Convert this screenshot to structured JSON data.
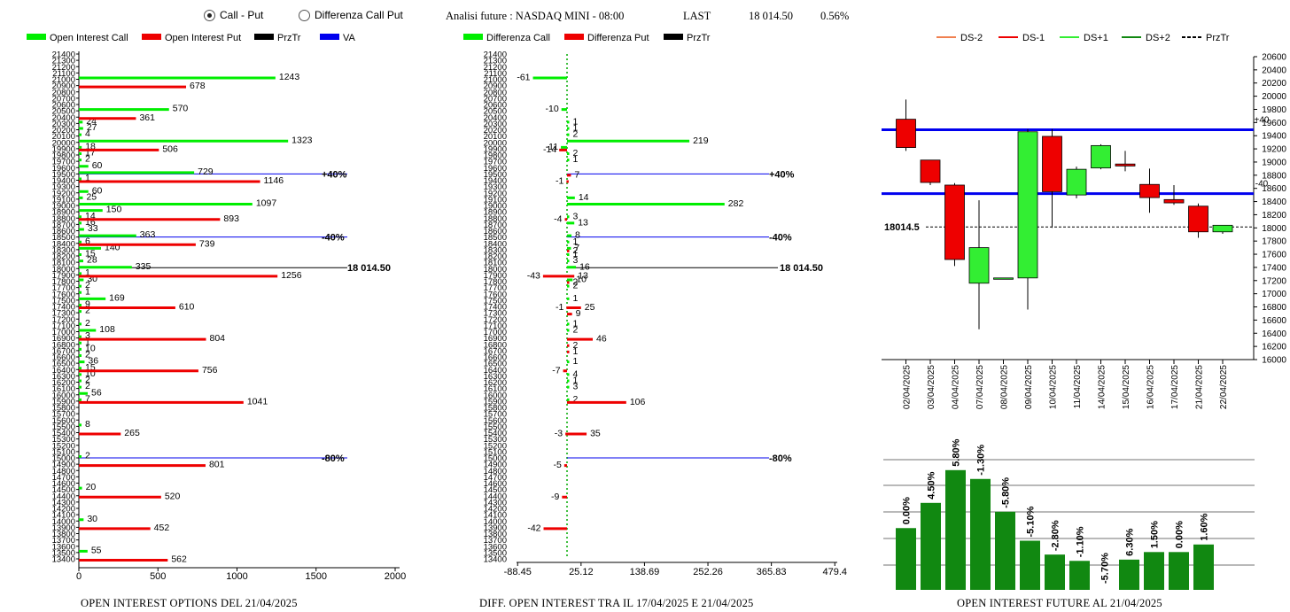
{
  "header": {
    "radio_call_put": "Call - Put",
    "radio_diff": "Differenza Call Put",
    "analysis_label": "Analisi future : NASDAQ MINI - 08:00",
    "last_label": "LAST",
    "last_value": "18 014.50",
    "last_pct": "0.56%"
  },
  "footers": {
    "left": "OPEN INTEREST OPTIONS DEL 21/04/2025",
    "middle": "DIFF. OPEN INTEREST TRA IL 17/04/2025 E 21/04/2025",
    "right": "OPEN INTEREST FUTURE AL 21/04/2025"
  },
  "colors": {
    "call": "#00ee00",
    "put": "#ee0000",
    "prztr": "#000000",
    "va": "#0000ee",
    "bull": "#33ee33",
    "bear": "#ee0000",
    "oi_bar": "#118811"
  },
  "chart_data": [
    {
      "type": "bar",
      "orientation": "horizontal",
      "legend": [
        "Open Interest Call",
        "Open Interest Put",
        "PrzTr",
        "VA"
      ],
      "ylim": [
        13400,
        21400
      ],
      "y_tick_step": 100,
      "xlim": [
        0,
        2000
      ],
      "x_ticks": [
        "0",
        "500",
        "1000",
        "1500",
        "2000"
      ],
      "series": [
        {
          "name": "Open Interest Call",
          "points": [
            [
              21000,
              1243
            ],
            [
              20500,
              570
            ],
            [
              20300,
              24
            ],
            [
              20200,
              27
            ],
            [
              20100,
              4
            ],
            [
              20000,
              1323
            ],
            [
              19900,
              18
            ],
            [
              19800,
              17
            ],
            [
              19700,
              2
            ],
            [
              19600,
              60
            ],
            [
              19500,
              729
            ],
            [
              19400,
              1
            ],
            [
              19200,
              60
            ],
            [
              19100,
              25
            ],
            [
              19000,
              1097
            ],
            [
              18900,
              150
            ],
            [
              18800,
              14
            ],
            [
              18700,
              16
            ],
            [
              18600,
              33
            ],
            [
              18500,
              363
            ],
            [
              18400,
              6
            ],
            [
              18300,
              140
            ],
            [
              18200,
              15
            ],
            [
              18100,
              28
            ],
            [
              18000,
              335
            ],
            [
              17900,
              1
            ],
            [
              17800,
              30
            ],
            [
              17700,
              2
            ],
            [
              17600,
              1
            ],
            [
              17500,
              169
            ],
            [
              17400,
              9
            ],
            [
              17300,
              2
            ],
            [
              17100,
              2
            ],
            [
              17000,
              108
            ],
            [
              16900,
              3
            ],
            [
              16800,
              1
            ],
            [
              16700,
              10
            ],
            [
              16600,
              2
            ],
            [
              16500,
              36
            ],
            [
              16400,
              15
            ],
            [
              16300,
              10
            ],
            [
              16200,
              2
            ],
            [
              16100,
              2
            ],
            [
              16000,
              56
            ],
            [
              15900,
              7
            ],
            [
              15500,
              8
            ],
            [
              15000,
              2
            ],
            [
              14500,
              20
            ],
            [
              14000,
              30
            ],
            [
              13500,
              55
            ]
          ]
        },
        {
          "name": "Open Interest Put",
          "points": [
            [
              20900,
              678
            ],
            [
              20400,
              361
            ],
            [
              19900,
              506
            ],
            [
              19400,
              1146
            ],
            [
              18800,
              893
            ],
            [
              18400,
              739
            ],
            [
              17900,
              1256
            ],
            [
              17400,
              610
            ],
            [
              16900,
              804
            ],
            [
              16400,
              756
            ],
            [
              15900,
              1041
            ],
            [
              15400,
              265
            ],
            [
              14900,
              801
            ],
            [
              14400,
              520
            ],
            [
              13900,
              452
            ],
            [
              13400,
              562
            ]
          ]
        }
      ],
      "levels": [
        {
          "name": "+40%",
          "value": 19500,
          "color": "va"
        },
        {
          "name": "-40%",
          "value": 18500,
          "color": "va"
        },
        {
          "name": "18 014.50",
          "value": 18014.5,
          "color": "prztr"
        },
        {
          "name": "-80%",
          "value": 15000,
          "color": "va"
        }
      ]
    },
    {
      "type": "bar",
      "orientation": "horizontal",
      "legend": [
        "Differenza Call",
        "Differenza Put",
        "PrzTr"
      ],
      "ylim": [
        13400,
        21400
      ],
      "xlim": [
        -88.45,
        479.4
      ],
      "x_ticks": [
        "-88.45",
        "25.12",
        "138.69",
        "252.26",
        "365.83",
        "479.4"
      ],
      "series": [
        {
          "name": "Differenza Call",
          "points": [
            [
              21000,
              -61
            ],
            [
              20500,
              -10
            ],
            [
              20300,
              1
            ],
            [
              20200,
              1
            ],
            [
              20100,
              2
            ],
            [
              20000,
              219
            ],
            [
              19900,
              -11
            ],
            [
              19800,
              2
            ],
            [
              19700,
              1
            ],
            [
              19100,
              14
            ],
            [
              19000,
              282
            ],
            [
              18800,
              3
            ],
            [
              18700,
              13
            ],
            [
              18500,
              8
            ],
            [
              18400,
              1
            ],
            [
              18300,
              7
            ],
            [
              18200,
              1
            ],
            [
              18100,
              3
            ],
            [
              18000,
              16
            ],
            [
              17800,
              10
            ],
            [
              17700,
              2
            ],
            [
              17500,
              1
            ],
            [
              17100,
              1
            ],
            [
              17000,
              2
            ],
            [
              16500,
              1
            ],
            [
              16300,
              4
            ],
            [
              16200,
              1
            ],
            [
              16100,
              3
            ],
            [
              15900,
              2
            ]
          ]
        },
        {
          "name": "Differenza Put",
          "points": [
            [
              19900,
              -14
            ],
            [
              19500,
              7
            ],
            [
              19400,
              -1
            ],
            [
              18800,
              -4
            ],
            [
              18300,
              2
            ],
            [
              17900,
              -43
            ],
            [
              17900,
              13
            ],
            [
              17800,
              2
            ],
            [
              17400,
              25
            ],
            [
              17400,
              -1
            ],
            [
              17300,
              9
            ],
            [
              16900,
              46
            ],
            [
              16800,
              2
            ],
            [
              16700,
              1
            ],
            [
              16400,
              -7
            ],
            [
              15900,
              106
            ],
            [
              15400,
              35
            ],
            [
              15400,
              -3
            ],
            [
              14900,
              -5
            ],
            [
              14400,
              -9
            ],
            [
              13900,
              -42
            ]
          ]
        }
      ],
      "levels": [
        {
          "name": "+40%",
          "value": 19500
        },
        {
          "name": "-40%",
          "value": 18500
        },
        {
          "name": "18 014.50",
          "value": 18014.5
        },
        {
          "name": "-80%",
          "value": 15000
        }
      ]
    },
    {
      "type": "candlestick",
      "legend": [
        "DS-2",
        "DS-1",
        "DS+1",
        "DS+2",
        "PrzTr"
      ],
      "ylim": [
        16000,
        20600
      ],
      "y_tick_step": 200,
      "categories": [
        "02/04/2025",
        "03/04/2025",
        "04/04/2025",
        "07/04/2025",
        "08/04/2025",
        "09/04/2025",
        "10/04/2025",
        "11/04/2025",
        "14/04/2025",
        "15/04/2025",
        "16/04/2025",
        "17/04/2025",
        "21/04/2025",
        "22/04/2025"
      ],
      "ohlc": [
        [
          19650,
          19950,
          19170,
          19220
        ],
        [
          19030,
          19030,
          18650,
          18690
        ],
        [
          18650,
          18680,
          17420,
          17520
        ],
        [
          17160,
          18420,
          16460,
          17700
        ],
        [
          17240,
          17240,
          17240,
          17240
        ],
        [
          17240,
          19500,
          16760,
          19460
        ],
        [
          19390,
          19500,
          18000,
          18550
        ],
        [
          18500,
          18930,
          18450,
          18890
        ],
        [
          18910,
          19270,
          18890,
          19250
        ],
        [
          18970,
          19170,
          18860,
          18940
        ],
        [
          18660,
          18900,
          18230,
          18460
        ],
        [
          18430,
          18650,
          18350,
          18380
        ],
        [
          18330,
          18370,
          17850,
          17940
        ],
        [
          17940,
          18040,
          17910,
          18040
        ]
      ],
      "levels": [
        {
          "name": "+40",
          "value": 19490
        },
        {
          "name": "-40",
          "value": 18520
        },
        {
          "name": "18014.5",
          "value": 18014.5
        }
      ]
    },
    {
      "type": "bar",
      "categories": [
        "02/04/2025",
        "03/04/2025",
        "04/04/2025",
        "07/04/2025",
        "08/04/2025",
        "09/04/2025",
        "10/04/2025",
        "11/04/2025",
        "14/04/2025",
        "15/04/2025",
        "16/04/2025",
        "17/04/2025",
        "21/04/2025",
        "22/04/2025"
      ],
      "labels": [
        "0.00%",
        "4.50%",
        "5.80%",
        "-1.30%",
        "-5.80%",
        "-5.10%",
        "-2.80%",
        "-1.10%",
        "-5.70%",
        "6.30%",
        "1.50%",
        "0.00%",
        "1.60%",
        ""
      ],
      "values": [
        2.45,
        3.45,
        4.75,
        4.4,
        3.1,
        1.95,
        1.4,
        1.15,
        0,
        1.2,
        1.5,
        1.5,
        1.8,
        0
      ],
      "ylim": [
        0,
        5.2
      ]
    }
  ]
}
